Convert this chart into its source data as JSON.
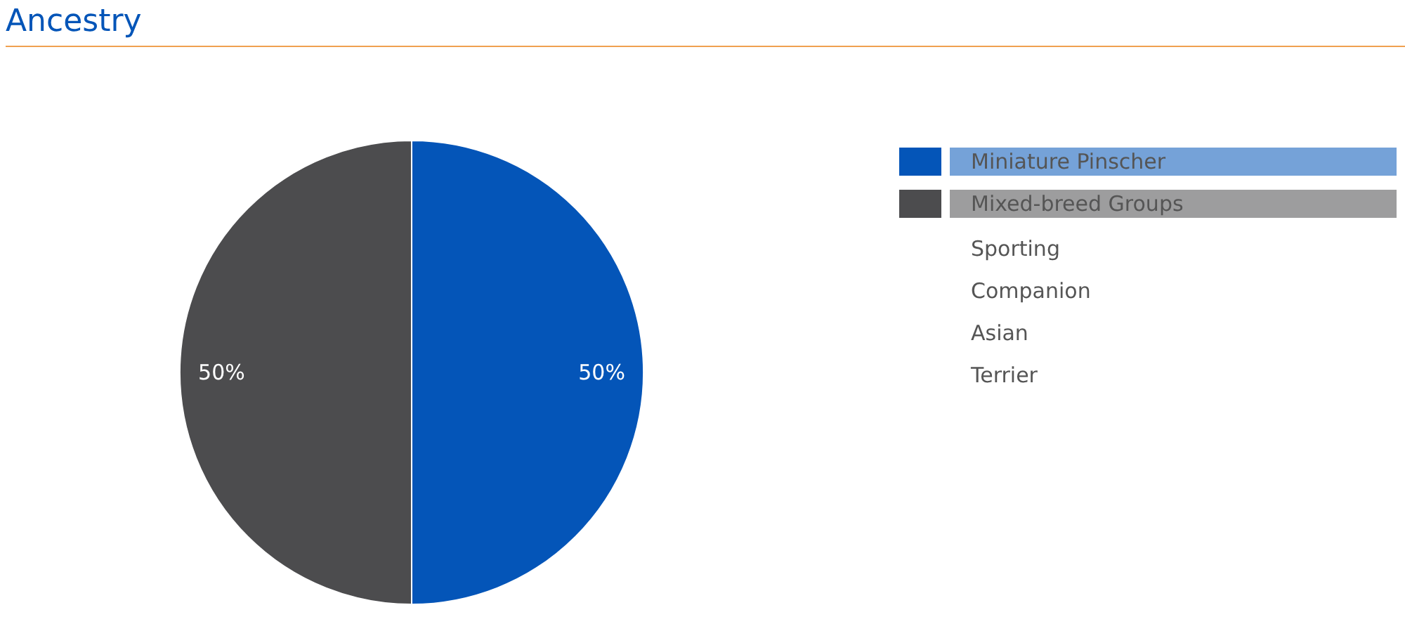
{
  "chart_data": {
    "type": "pie",
    "title": "Ancestry",
    "categories": [
      "Miniature Pinscher",
      "Mixed-breed Groups"
    ],
    "values": [
      50,
      50
    ],
    "colors": [
      "#0455b8",
      "#4c4c4e"
    ],
    "value_labels": [
      "50%",
      "50%"
    ],
    "legend": "right",
    "annotations": [
      "Sporting",
      "Companion",
      "Asian",
      "Terrier"
    ]
  }
}
